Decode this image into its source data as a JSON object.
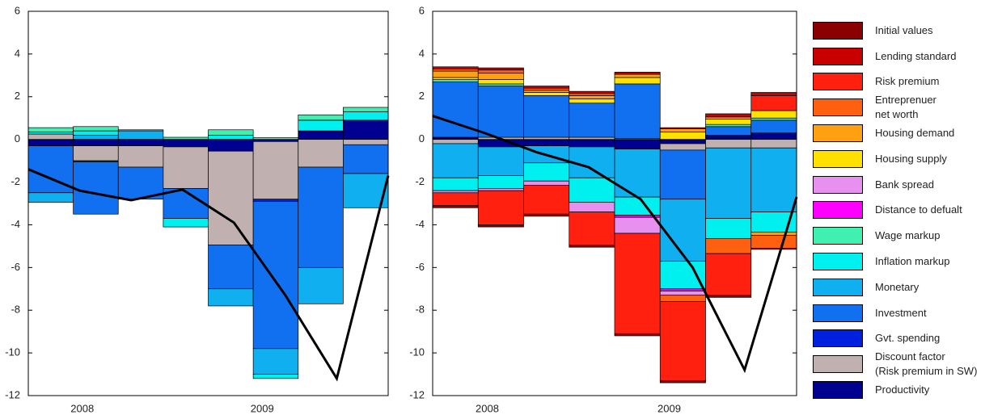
{
  "chart_data": [
    {
      "type": "bar",
      "categories": [
        null,
        "2008",
        null,
        null,
        null,
        "2009",
        null,
        null
      ],
      "ylim": [
        -12,
        6
      ],
      "yticks": [
        -12,
        -10,
        -8,
        -6,
        -4,
        -2,
        0,
        2,
        4,
        6
      ],
      "series": [
        {
          "color": "#40f0b0",
          "values": [
            0.2,
            0.2,
            0,
            0.1,
            0.25,
            0.08,
            0.25,
            0.2
          ]
        },
        {
          "color": "#00f0f0",
          "values": [
            0.1,
            0.2,
            0.05,
            -0.4,
            0.2,
            -0.2,
            0.5,
            0.4
          ]
        },
        {
          "color": "#10b0f0",
          "values": [
            -0.45,
            0.2,
            0.4,
            0,
            -0.8,
            -1.2,
            -1.7,
            -1.6
          ]
        },
        {
          "color": "#1070f0",
          "values": [
            -2.2,
            -2.45,
            -1.5,
            -1.4,
            -2.05,
            -6.9,
            -4.7,
            -1.35
          ]
        },
        {
          "color": "#0020e0",
          "values": [
            0,
            -0.05,
            0,
            0,
            0,
            -0.1,
            0,
            0
          ]
        },
        {
          "color": "#c0b0b0",
          "values": [
            0.25,
            -0.7,
            -1.0,
            -1.95,
            -4.4,
            -2.7,
            -1.3,
            -0.25
          ]
        },
        {
          "color": "#000090",
          "values": [
            -0.3,
            -0.3,
            -0.3,
            -0.35,
            -0.55,
            -0.1,
            0.4,
            0.9
          ]
        }
      ],
      "total": {
        "color": "#000000",
        "values": [
          -1.4,
          -2.4,
          -2.85,
          -2.35,
          -3.9,
          -7.3,
          -11.2,
          -1.7
        ]
      }
    },
    {
      "type": "bar",
      "categories": [
        null,
        "2008",
        null,
        null,
        null,
        "2009",
        null,
        null
      ],
      "ylim": [
        -12,
        6
      ],
      "yticks": [
        -12,
        -10,
        -8,
        -6,
        -4,
        -2,
        0,
        2,
        4,
        6
      ],
      "legend": "right",
      "series": [
        {
          "name": "Initial values",
          "color": "#8b0000",
          "values": [
            -0.1,
            -0.1,
            -0.1,
            -0.1,
            -0.1,
            -0.1,
            -0.1,
            -0.05
          ]
        },
        {
          "name": "Lending standard",
          "color": "#c80000",
          "values": [
            0.1,
            0.1,
            0.1,
            0.1,
            0.1,
            0.05,
            0.15,
            0.15
          ]
        },
        {
          "name": "Risk premium",
          "color": "#ff2010",
          "values": [
            -0.6,
            -1.6,
            -1.35,
            -1.55,
            -4.7,
            -3.7,
            -1.95,
            0.7
          ]
        },
        {
          "name": "Entreprenuer\nnet worth",
          "color": "#ff6010",
          "values": [
            0.1,
            0.15,
            0.1,
            0.1,
            0,
            -0.3,
            -0.7,
            -0.6
          ]
        },
        {
          "name": "Housing demand",
          "color": "#ffa010",
          "values": [
            0.3,
            0.3,
            0.1,
            0.15,
            0.15,
            0.15,
            0.1,
            -0.15
          ]
        },
        {
          "name": "Housing supply",
          "color": "#ffe000",
          "values": [
            0.1,
            0.2,
            0.15,
            0.2,
            0.3,
            0.35,
            0.25,
            0.35
          ]
        },
        {
          "name": "Bank spread",
          "color": "#e890f0",
          "values": [
            -0.1,
            -0.1,
            -0.2,
            -0.45,
            -0.75,
            -0.2,
            0,
            0
          ]
        },
        {
          "name": "Distance to defualt",
          "color": "#ff00ff",
          "values": [
            0,
            0,
            0,
            0,
            -0.1,
            -0.1,
            0,
            0
          ]
        },
        {
          "name": "Wage markup",
          "color": "#40f0b0",
          "values": [
            0.1,
            0.1,
            0,
            0,
            0,
            0,
            0.1,
            0.1
          ]
        },
        {
          "name": "Inflation markup",
          "color": "#00f0f0",
          "values": [
            -0.6,
            -0.6,
            -0.85,
            -1.15,
            -0.85,
            -1.3,
            -0.95,
            -0.95
          ]
        },
        {
          "name": "Monetary",
          "color": "#10b0f0",
          "values": [
            -1.6,
            -1.35,
            -0.8,
            -1.45,
            -2.25,
            -2.9,
            -3.3,
            -3.0
          ]
        },
        {
          "name": "Investment",
          "color": "#1070f0",
          "values": [
            2.6,
            2.4,
            1.95,
            1.6,
            2.55,
            -2.3,
            0.4,
            0.6
          ]
        },
        {
          "name": "Gvt. spending",
          "color": "#0020e0",
          "values": [
            0,
            0,
            0,
            0,
            0,
            0,
            0.05,
            0
          ]
        },
        {
          "name": "Discount factor\n(Risk premium in SW)",
          "color": "#c0b0b0",
          "values": [
            -0.2,
            0.1,
            0.1,
            0.1,
            0.05,
            -0.3,
            -0.4,
            -0.4
          ]
        },
        {
          "name": "Productivity",
          "color": "#000090",
          "values": [
            0.1,
            -0.35,
            -0.3,
            -0.35,
            -0.45,
            -0.2,
            0.15,
            0.3
          ]
        }
      ],
      "total": {
        "color": "#000000",
        "values": [
          1.1,
          0.3,
          -0.6,
          -1.3,
          -2.8,
          -6.0,
          -10.8,
          -2.7
        ]
      }
    }
  ]
}
